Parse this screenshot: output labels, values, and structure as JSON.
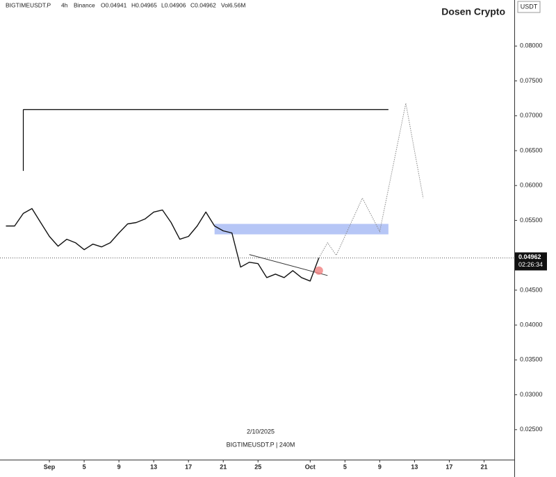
{
  "chart_data": {
    "type": "line",
    "symbol": "BIGTIMEUSDT.P",
    "interval": "4h",
    "exchange": "Binance",
    "ohlc": [
      "O0.04941",
      "H0.04965",
      "L0.04906",
      "C0.04962",
      "Vol6.56M"
    ],
    "brand": "Dosen Crypto",
    "currency": "USDT",
    "date_stamp": "2/10/2025",
    "footer": "BIGTIMEUSDT.P | 240M",
    "countdown": "02:26:34",
    "last_price": {
      "value": 0.04962,
      "label": "0.04962"
    },
    "x": [
      "2025-08-27",
      "2025-08-28",
      "2025-08-29",
      "2025-08-30",
      "2025-08-31",
      "2025-09-01",
      "2025-09-02",
      "2025-09-03",
      "2025-09-04",
      "2025-09-05",
      "2025-09-06",
      "2025-09-07",
      "2025-09-08",
      "2025-09-09",
      "2025-09-10",
      "2025-09-11",
      "2025-09-12",
      "2025-09-13",
      "2025-09-14",
      "2025-09-15",
      "2025-09-16",
      "2025-09-17",
      "2025-09-18",
      "2025-09-19",
      "2025-09-20",
      "2025-09-21",
      "2025-09-22",
      "2025-09-23",
      "2025-09-24",
      "2025-09-25",
      "2025-09-26",
      "2025-09-27",
      "2025-09-28",
      "2025-09-29",
      "2025-09-30",
      "2025-10-01",
      "2025-10-02"
    ],
    "series": [
      {
        "color": "#111111",
        "values": [
          0.0542,
          0.0542,
          0.056,
          0.0567,
          0.0547,
          0.0527,
          0.0513,
          0.0523,
          0.0518,
          0.0508,
          0.0516,
          0.0512,
          0.0518,
          0.0532,
          0.0545,
          0.0547,
          0.0552,
          0.0562,
          0.0565,
          0.0547,
          0.0523,
          0.0527,
          0.0542,
          0.0562,
          0.0542,
          0.0535,
          0.0532,
          0.0483,
          0.049,
          0.0488,
          0.0468,
          0.0473,
          0.0468,
          0.0478,
          0.0468,
          0.0463,
          0.04962
        ]
      }
    ],
    "projection": {
      "color": "#888888",
      "x": [
        "2025-10-02",
        "2025-10-03",
        "2025-10-04",
        "2025-10-07",
        "2025-10-09",
        "2025-10-12",
        "2025-10-14"
      ],
      "values": [
        0.04962,
        0.0518,
        0.05,
        0.0582,
        0.0534,
        0.0718,
        0.0582
      ]
    },
    "resistance": {
      "color": "#000000",
      "x": [
        "2025-08-29",
        "2025-10-10"
      ],
      "value": 0.0709,
      "anchor": 0.0621
    },
    "zone": {
      "color": "#a9bcf5",
      "x": [
        "2025-09-20",
        "2025-10-10"
      ],
      "y": [
        0.053,
        0.0545
      ]
    },
    "trendline": {
      "color": "#333333",
      "x": [
        "2025-09-24",
        "2025-10-03"
      ],
      "values": [
        0.0501,
        0.0471
      ]
    },
    "marker": {
      "color": "#f08080",
      "x": "2025-10-02",
      "value": 0.0478
    },
    "xlim": [
      "2025-08-26",
      "2025-10-24"
    ],
    "xticks": [
      {
        "value": "2025-09-01",
        "label": "Sep"
      },
      {
        "value": "2025-09-05",
        "label": "5"
      },
      {
        "value": "2025-09-09",
        "label": "9"
      },
      {
        "value": "2025-09-13",
        "label": "13"
      },
      {
        "value": "2025-09-17",
        "label": "17"
      },
      {
        "value": "2025-09-21",
        "label": "21"
      },
      {
        "value": "2025-09-25",
        "label": "25"
      },
      {
        "value": "2025-10-01",
        "label": "Oct"
      },
      {
        "value": "2025-10-05",
        "label": "5"
      },
      {
        "value": "2025-10-09",
        "label": "9"
      },
      {
        "value": "2025-10-13",
        "label": "13"
      },
      {
        "value": "2025-10-17",
        "label": "17"
      },
      {
        "value": "2025-10-21",
        "label": "21"
      }
    ],
    "ylim": [
      0.0207,
      0.0866
    ],
    "yticks": [
      {
        "value": 0.025,
        "label": "0.02500"
      },
      {
        "value": 0.03,
        "label": "0.03000"
      },
      {
        "value": 0.035,
        "label": "0.03500"
      },
      {
        "value": 0.04,
        "label": "0.04000"
      },
      {
        "value": 0.045,
        "label": "0.04500"
      },
      {
        "value": 0.05,
        "label": "0.05000"
      },
      {
        "value": 0.055,
        "label": "0.05500"
      },
      {
        "value": 0.06,
        "label": "0.06000"
      },
      {
        "value": 0.065,
        "label": "0.06500"
      },
      {
        "value": 0.07,
        "label": "0.07000"
      },
      {
        "value": 0.075,
        "label": "0.07500"
      },
      {
        "value": 0.08,
        "label": "0.08000"
      }
    ],
    "grid": false
  }
}
